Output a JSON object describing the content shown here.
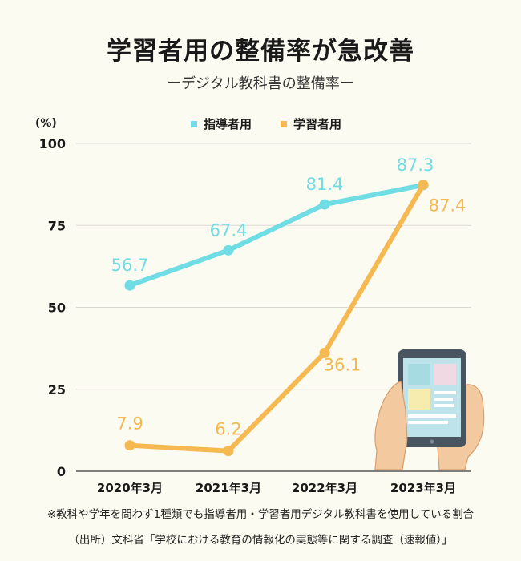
{
  "title": "学習者用の整備率が急改善",
  "subtitle": "ーデジタル教科書の整備率ー",
  "unit_label": "(%)",
  "footnote_1": "※教科や学年を問わず1種類でも指導者用・学習者用デジタル教科書を使用している割合",
  "footnote_2": "（出所）文科省「学校における教育の情報化の実態等に関する調査（速報値）」",
  "colors": {
    "teacher": "#6fdde3",
    "student": "#f6b850",
    "grid": "#d9d9d4"
  },
  "illustration": "tablet-with-hands",
  "chart_data": {
    "type": "line",
    "categories": [
      "2020年3月",
      "2021年3月",
      "2022年3月",
      "2023年3月"
    ],
    "ylim": [
      0,
      100
    ],
    "yticks": [
      0,
      25,
      50,
      75,
      100
    ],
    "grid": true,
    "legend_position": "top-center",
    "series": [
      {
        "name": "指導者用",
        "values": [
          56.7,
          67.4,
          81.4,
          87.3
        ],
        "labels": [
          "56.7",
          "67.4",
          "81.4",
          "87.3"
        ]
      },
      {
        "name": "学習者用",
        "values": [
          7.9,
          6.2,
          36.1,
          87.4
        ],
        "labels": [
          "7.9",
          "6.2",
          "36.1",
          "87.4"
        ]
      }
    ]
  }
}
